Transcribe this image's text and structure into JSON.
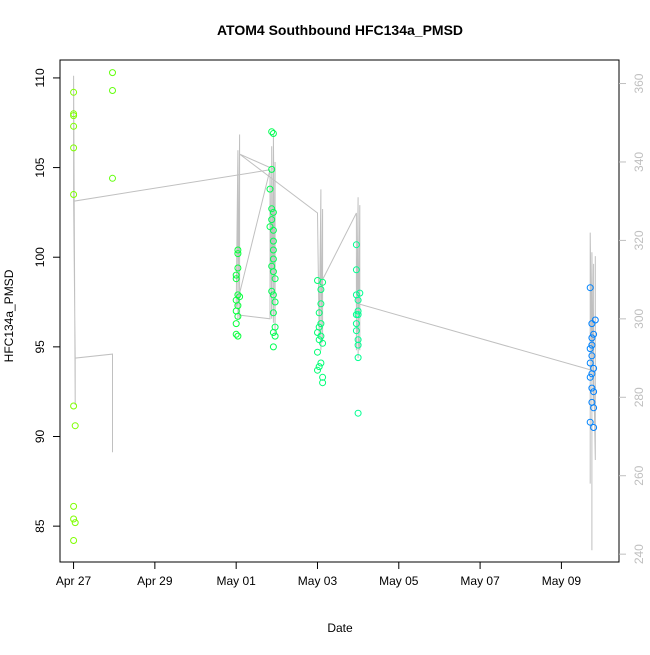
{
  "chart_data": {
    "type": "scatter",
    "title": "ATOM4 Southbound HFC134a_PMSD",
    "xlabel": "Date",
    "ylabel": "HFC134a_PMSD",
    "grid": false,
    "legend": "none",
    "x_axis": {
      "unit": "date",
      "range": [
        "2017-04-26T16:00",
        "2017-05-10T10:00"
      ],
      "ticks": [
        {
          "date": "2017-04-27T00:00",
          "label": "Apr 27"
        },
        {
          "date": "2017-04-29T00:00",
          "label": "Apr 29"
        },
        {
          "date": "2017-05-01T00:00",
          "label": "May 01"
        },
        {
          "date": "2017-05-03T00:00",
          "label": "May 03"
        },
        {
          "date": "2017-05-05T00:00",
          "label": "May 05"
        },
        {
          "date": "2017-05-07T00:00",
          "label": "May 07"
        },
        {
          "date": "2017-05-09T00:00",
          "label": "May 09"
        }
      ]
    },
    "y_axis_left": {
      "range": [
        83,
        111
      ],
      "ticks": [
        85,
        90,
        95,
        100,
        105,
        110
      ],
      "color": "#000000"
    },
    "y_axis_right": {
      "range": [
        238,
        366
      ],
      "ticks": [
        240,
        260,
        280,
        300,
        320,
        340,
        360
      ],
      "color": "#bfbfbf"
    },
    "series": [
      {
        "role": "points",
        "axis": "left",
        "marker": "open-circle",
        "color_scale": [
          "#7fff00",
          "#00ff40",
          "#00ffbf",
          "#0080ff"
        ],
        "points": [
          [
            "2017-04-27T00:00",
            109.2
          ],
          [
            "2017-04-27T00:00",
            108.0
          ],
          [
            "2017-04-27T00:00",
            107.9
          ],
          [
            "2017-04-27T00:00",
            107.3
          ],
          [
            "2017-04-27T00:00",
            106.1
          ],
          [
            "2017-04-27T00:00",
            103.5
          ],
          [
            "2017-04-27T00:00",
            91.7
          ],
          [
            "2017-04-27T01:00",
            90.6
          ],
          [
            "2017-04-27T00:00",
            86.1
          ],
          [
            "2017-04-27T00:00",
            85.4
          ],
          [
            "2017-04-27T01:00",
            85.2
          ],
          [
            "2017-04-27T00:00",
            84.2
          ],
          [
            "2017-04-27T23:00",
            110.3
          ],
          [
            "2017-04-27T23:00",
            109.3
          ],
          [
            "2017-04-27T23:00",
            104.4
          ],
          [
            "2017-05-01T01:00",
            100.4
          ],
          [
            "2017-05-01T01:00",
            100.2
          ],
          [
            "2017-05-01T01:00",
            99.4
          ],
          [
            "2017-05-01T00:00",
            99.0
          ],
          [
            "2017-05-01T00:00",
            98.8
          ],
          [
            "2017-05-01T01:00",
            97.9
          ],
          [
            "2017-05-01T00:00",
            97.6
          ],
          [
            "2017-05-01T01:00",
            97.3
          ],
          [
            "2017-05-01T00:00",
            97.0
          ],
          [
            "2017-05-01T01:00",
            96.7
          ],
          [
            "2017-05-01T00:00",
            96.3
          ],
          [
            "2017-05-01T00:00",
            95.7
          ],
          [
            "2017-05-01T01:00",
            95.6
          ],
          [
            "2017-05-01T02:00",
            97.8
          ],
          [
            "2017-05-01T21:00",
            107.0
          ],
          [
            "2017-05-01T22:00",
            106.9
          ],
          [
            "2017-05-01T21:00",
            104.9
          ],
          [
            "2017-05-01T20:00",
            103.8
          ],
          [
            "2017-05-01T21:00",
            102.7
          ],
          [
            "2017-05-01T22:00",
            102.5
          ],
          [
            "2017-05-01T21:00",
            102.1
          ],
          [
            "2017-05-01T20:00",
            101.7
          ],
          [
            "2017-05-01T22:00",
            101.5
          ],
          [
            "2017-05-01T22:00",
            100.9
          ],
          [
            "2017-05-01T22:00",
            100.4
          ],
          [
            "2017-05-01T22:00",
            99.9
          ],
          [
            "2017-05-01T21:00",
            99.5
          ],
          [
            "2017-05-01T22:00",
            99.2
          ],
          [
            "2017-05-01T23:00",
            98.8
          ],
          [
            "2017-05-01T21:00",
            98.1
          ],
          [
            "2017-05-01T22:00",
            97.9
          ],
          [
            "2017-05-01T23:00",
            97.5
          ],
          [
            "2017-05-01T22:00",
            96.9
          ],
          [
            "2017-05-01T23:00",
            96.1
          ],
          [
            "2017-05-01T22:00",
            95.8
          ],
          [
            "2017-05-01T23:00",
            95.6
          ],
          [
            "2017-05-01T22:00",
            95.0
          ],
          [
            "2017-05-03T00:00",
            98.7
          ],
          [
            "2017-05-03T03:00",
            98.6
          ],
          [
            "2017-05-03T02:00",
            98.2
          ],
          [
            "2017-05-03T02:00",
            97.4
          ],
          [
            "2017-05-03T01:00",
            96.9
          ],
          [
            "2017-05-03T02:00",
            96.3
          ],
          [
            "2017-05-03T01:00",
            96.1
          ],
          [
            "2017-05-03T00:00",
            95.8
          ],
          [
            "2017-05-03T02:00",
            95.6
          ],
          [
            "2017-05-03T01:00",
            95.4
          ],
          [
            "2017-05-03T03:00",
            95.2
          ],
          [
            "2017-05-03T00:00",
            94.7
          ],
          [
            "2017-05-03T02:00",
            94.1
          ],
          [
            "2017-05-03T01:00",
            93.9
          ],
          [
            "2017-05-03T00:00",
            93.7
          ],
          [
            "2017-05-03T03:00",
            93.3
          ],
          [
            "2017-05-03T03:00",
            93.0
          ],
          [
            "2017-05-03T23:00",
            100.7
          ],
          [
            "2017-05-03T23:00",
            99.3
          ],
          [
            "2017-05-03T23:00",
            97.9
          ],
          [
            "2017-05-04T01:00",
            98.0
          ],
          [
            "2017-05-04T00:00",
            97.6
          ],
          [
            "2017-05-04T00:00",
            97.0
          ],
          [
            "2017-05-03T23:00",
            96.8
          ],
          [
            "2017-05-04T00:00",
            96.8
          ],
          [
            "2017-05-03T23:00",
            96.3
          ],
          [
            "2017-05-03T23:00",
            95.9
          ],
          [
            "2017-05-04T00:00",
            95.4
          ],
          [
            "2017-05-04T00:00",
            95.1
          ],
          [
            "2017-05-04T00:00",
            94.4
          ],
          [
            "2017-05-04T00:00",
            91.3
          ],
          [
            "2017-05-09T17:00",
            98.3
          ],
          [
            "2017-05-09T20:00",
            96.5
          ],
          [
            "2017-05-09T18:00",
            96.3
          ],
          [
            "2017-05-09T19:00",
            95.7
          ],
          [
            "2017-05-09T18:00",
            95.5
          ],
          [
            "2017-05-09T18:00",
            95.1
          ],
          [
            "2017-05-09T17:00",
            94.9
          ],
          [
            "2017-05-09T18:00",
            94.5
          ],
          [
            "2017-05-09T17:00",
            94.1
          ],
          [
            "2017-05-09T19:00",
            93.8
          ],
          [
            "2017-05-09T18:00",
            93.5
          ],
          [
            "2017-05-09T17:00",
            93.3
          ],
          [
            "2017-05-09T18:00",
            92.7
          ],
          [
            "2017-05-09T19:00",
            92.5
          ],
          [
            "2017-05-09T18:00",
            91.9
          ],
          [
            "2017-05-09T19:00",
            91.6
          ],
          [
            "2017-05-09T17:00",
            90.8
          ],
          [
            "2017-05-09T19:00",
            90.5
          ]
        ]
      },
      {
        "role": "line",
        "axis": "right",
        "color": "#c0c0c0",
        "points": [
          [
            "2017-04-27T00:00",
            330
          ],
          [
            "2017-04-27T00:00",
            362
          ],
          [
            "2017-04-27T01:00",
            278
          ],
          [
            "2017-04-27T01:00",
            290
          ],
          [
            "2017-04-27T23:00",
            291
          ],
          [
            "2017-04-27T23:00",
            266
          ],
          [
            "2017-04-27T23:00",
            291
          ],
          [
            "2017-04-27T01:00",
            290
          ],
          [
            "2017-04-27T00:00",
            330
          ],
          [
            "2017-05-01T20:00",
            338
          ],
          [
            "2017-05-01T00:00",
            303
          ],
          [
            "2017-05-01T01:00",
            343
          ],
          [
            "2017-05-01T01:00",
            300
          ],
          [
            "2017-05-01T02:00",
            347
          ],
          [
            "2017-05-01T02:00",
            300
          ],
          [
            "2017-05-01T02:00",
            343
          ],
          [
            "2017-05-01T01:00",
            301
          ],
          [
            "2017-05-01T20:00",
            300
          ],
          [
            "2017-05-01T20:00",
            338
          ],
          [
            "2017-05-01T21:00",
            300
          ],
          [
            "2017-05-01T21:00",
            344
          ],
          [
            "2017-05-01T22:00",
            299
          ],
          [
            "2017-05-01T22:00",
            347
          ],
          [
            "2017-05-01T23:00",
            296
          ],
          [
            "2017-05-01T23:00",
            340
          ],
          [
            "2017-05-01T23:00",
            338
          ],
          [
            "2017-05-01T02:00",
            342
          ],
          [
            "2017-05-03T00:00",
            327
          ],
          [
            "2017-05-03T01:00",
            295
          ],
          [
            "2017-05-03T02:00",
            333
          ],
          [
            "2017-05-03T02:00",
            292
          ],
          [
            "2017-05-03T03:00",
            328
          ],
          [
            "2017-05-03T03:00",
            294
          ],
          [
            "2017-05-03T03:00",
            310
          ],
          [
            "2017-05-03T23:00",
            327
          ],
          [
            "2017-05-03T23:00",
            292
          ],
          [
            "2017-05-04T00:00",
            331
          ],
          [
            "2017-05-04T00:00",
            290
          ],
          [
            "2017-05-04T01:00",
            329
          ],
          [
            "2017-05-04T01:00",
            292
          ],
          [
            "2017-05-03T23:00",
            300
          ],
          [
            "2017-05-03T23:00",
            327
          ],
          [
            "2017-05-03T23:00",
            304
          ],
          [
            "2017-05-09T17:00",
            287
          ],
          [
            "2017-05-09T17:00",
            258
          ],
          [
            "2017-05-09T17:00",
            322
          ],
          [
            "2017-05-09T18:00",
            285
          ],
          [
            "2017-05-09T18:00",
            241
          ],
          [
            "2017-05-09T18:00",
            317
          ],
          [
            "2017-05-09T19:00",
            278
          ],
          [
            "2017-05-09T19:00",
            314
          ],
          [
            "2017-05-09T19:00",
            287
          ],
          [
            "2017-05-09T20:00",
            264
          ],
          [
            "2017-05-09T20:00",
            316
          ]
        ]
      }
    ]
  }
}
